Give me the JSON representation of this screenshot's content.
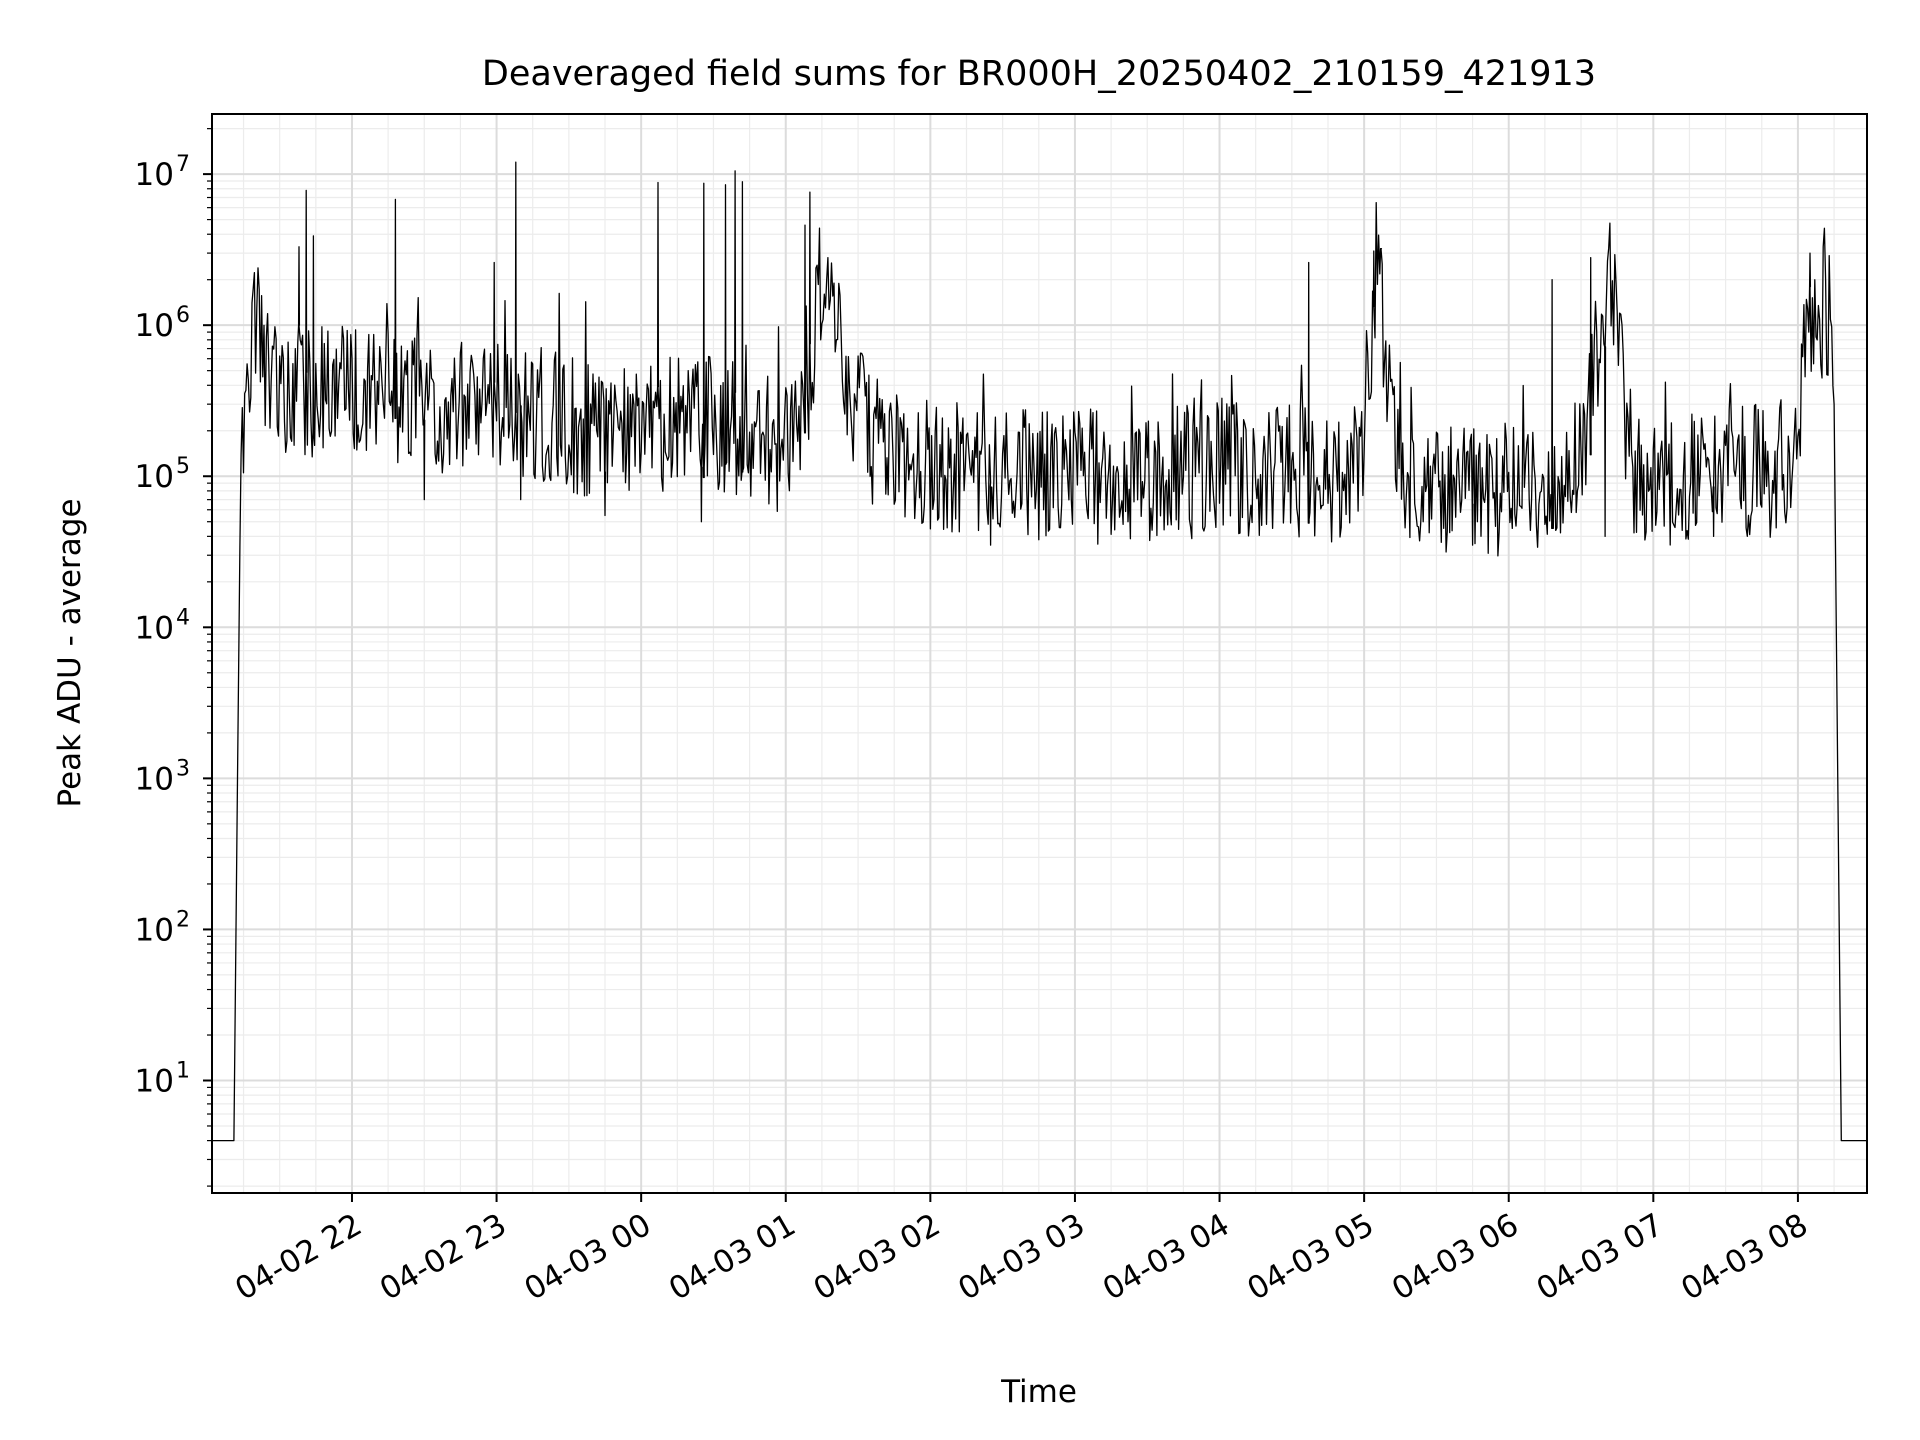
{
  "chart_data": {
    "type": "line",
    "title": "Deaveraged field sums for BR000H_20250402_210159_421913",
    "xlabel": "Time",
    "ylabel": "Peak ADU - average",
    "yscale": "log",
    "ylim": [
      1.8,
      25000000
    ],
    "xlim": [
      "2025-04-02 21:01:55",
      "2025-04-03 08:28:40"
    ],
    "grid": "major and minor on both axes",
    "line_color": "#000000",
    "x_ticks": [
      {
        "value": "2025-04-02 22:00",
        "label": "04-02 22"
      },
      {
        "value": "2025-04-02 23:00",
        "label": "04-02 23"
      },
      {
        "value": "2025-04-03 00:00",
        "label": "04-03 00"
      },
      {
        "value": "2025-04-03 01:00",
        "label": "04-03 01"
      },
      {
        "value": "2025-04-03 02:00",
        "label": "04-03 02"
      },
      {
        "value": "2025-04-03 03:00",
        "label": "04-03 03"
      },
      {
        "value": "2025-04-03 04:00",
        "label": "04-03 04"
      },
      {
        "value": "2025-04-03 05:00",
        "label": "04-03 05"
      },
      {
        "value": "2025-04-03 06:00",
        "label": "04-03 06"
      },
      {
        "value": "2025-04-03 07:00",
        "label": "04-03 07"
      },
      {
        "value": "2025-04-03 08:00",
        "label": "04-03 08"
      }
    ],
    "y_ticks": [
      {
        "value": 10,
        "base": "10",
        "exp": "1"
      },
      {
        "value": 100,
        "base": "10",
        "exp": "2"
      },
      {
        "value": 1000,
        "base": "10",
        "exp": "3"
      },
      {
        "value": 10000,
        "base": "10",
        "exp": "4"
      },
      {
        "value": 100000,
        "base": "10",
        "exp": "5"
      },
      {
        "value": 1000000,
        "base": "10",
        "exp": "6"
      },
      {
        "value": 10000000,
        "base": "10",
        "exp": "7"
      }
    ],
    "series": [
      {
        "x": [
          "2025-04-02 21:01:55",
          "2025-04-02 21:11:00",
          "2025-04-02 21:12:30",
          "2025-04-02 21:14:00",
          "2025-04-02 21:18:00",
          "2025-04-02 21:20:00",
          "2025-04-02 21:22:00",
          "2025-04-02 21:25:00",
          "2025-04-02 21:30:00",
          "2025-04-02 21:40:00",
          "2025-04-02 21:50:00",
          "2025-04-02 22:00:00",
          "2025-04-02 22:15:00",
          "2025-04-02 22:30:00",
          "2025-04-02 22:45:00",
          "2025-04-02 23:00:00",
          "2025-04-02 23:20:00",
          "2025-04-02 23:40:00",
          "2025-04-03 00:00:00",
          "2025-04-03 00:20:00",
          "2025-04-03 00:40:00",
          "2025-04-03 01:00:00",
          "2025-04-03 01:10:00",
          "2025-04-03 01:15:00",
          "2025-04-03 01:20:00",
          "2025-04-03 01:25:00",
          "2025-04-03 01:30:00",
          "2025-04-03 01:40:00",
          "2025-04-03 02:00:00",
          "2025-04-03 02:20:00",
          "2025-04-03 02:40:00",
          "2025-04-03 03:00:00",
          "2025-04-03 03:30:00",
          "2025-04-03 04:00:00",
          "2025-04-03 04:30:00",
          "2025-04-03 04:55:00",
          "2025-04-03 05:00:00",
          "2025-04-03 05:05:00",
          "2025-04-03 05:10:00",
          "2025-04-03 05:15:00",
          "2025-04-03 05:20:00",
          "2025-04-03 05:40:00",
          "2025-04-03 06:00:00",
          "2025-04-03 06:15:00",
          "2025-04-03 06:30:00",
          "2025-04-03 06:40:00",
          "2025-04-03 06:45:00",
          "2025-04-03 06:50:00",
          "2025-04-03 07:10:00",
          "2025-04-03 07:30:00",
          "2025-04-03 07:50:00",
          "2025-04-03 08:00:00",
          "2025-04-03 08:02:00",
          "2025-04-03 08:05:00",
          "2025-04-03 08:10:00",
          "2025-04-03 08:13:00",
          "2025-04-03 08:15:00",
          "2025-04-03 08:18:00",
          "2025-04-03 08:28:40"
        ],
        "y": [
          4,
          4,
          1000,
          200000,
          800000,
          1200000,
          900000,
          500000,
          400000,
          350000,
          400000,
          380000,
          350000,
          300000,
          280000,
          300000,
          250000,
          200000,
          180000,
          250000,
          200000,
          150000,
          300000,
          2500000,
          1500000,
          500000,
          250000,
          150000,
          120000,
          110000,
          100000,
          100000,
          100000,
          110000,
          110000,
          100000,
          200000,
          2500000,
          500000,
          90000,
          80000,
          80000,
          80000,
          90000,
          150000,
          1200000,
          2000000,
          100000,
          90000,
          100000,
          110000,
          150000,
          800000,
          1000000,
          1200000,
          1100000,
          300000,
          4,
          4
        ],
        "spikes": [
          {
            "x": "2025-04-02 21:41:00",
            "y": 7800000
          },
          {
            "x": "2025-04-02 21:44:00",
            "y": 3900000
          },
          {
            "x": "2025-04-02 21:38:00",
            "y": 3300000
          },
          {
            "x": "2025-04-02 22:18:00",
            "y": 6800000
          },
          {
            "x": "2025-04-02 22:59:00",
            "y": 2600000
          },
          {
            "x": "2025-04-02 23:08:00",
            "y": 12000000
          },
          {
            "x": "2025-04-03 00:07:00",
            "y": 8800000
          },
          {
            "x": "2025-04-03 00:26:00",
            "y": 8700000
          },
          {
            "x": "2025-04-03 00:35:00",
            "y": 8500000
          },
          {
            "x": "2025-04-03 00:39:00",
            "y": 10500000
          },
          {
            "x": "2025-04-03 00:42:00",
            "y": 8900000
          },
          {
            "x": "2025-04-03 01:08:00",
            "y": 4600000
          },
          {
            "x": "2025-04-03 01:10:00",
            "y": 7600000
          },
          {
            "x": "2025-04-03 04:37:00",
            "y": 2600000
          },
          {
            "x": "2025-04-03 05:04:00",
            "y": 3100000
          },
          {
            "x": "2025-04-03 05:07:00",
            "y": 3200000
          },
          {
            "x": "2025-04-03 06:18:00",
            "y": 2000000
          },
          {
            "x": "2025-04-03 06:34:00",
            "y": 2800000
          },
          {
            "x": "2025-04-03 08:05:00",
            "y": 3000000
          }
        ],
        "dips": [
          {
            "x": "2025-04-02 22:30:00",
            "y": 70000
          },
          {
            "x": "2025-04-02 23:10:00",
            "y": 70000
          },
          {
            "x": "2025-04-02 23:45:00",
            "y": 55000
          },
          {
            "x": "2025-04-03 00:25:00",
            "y": 50000
          },
          {
            "x": "2025-04-03 02:25:00",
            "y": 35000
          },
          {
            "x": "2025-04-03 05:45:00",
            "y": 35000
          },
          {
            "x": "2025-04-03 06:40:00",
            "y": 40000
          },
          {
            "x": "2025-04-03 07:25:00",
            "y": 40000
          }
        ]
      }
    ]
  }
}
